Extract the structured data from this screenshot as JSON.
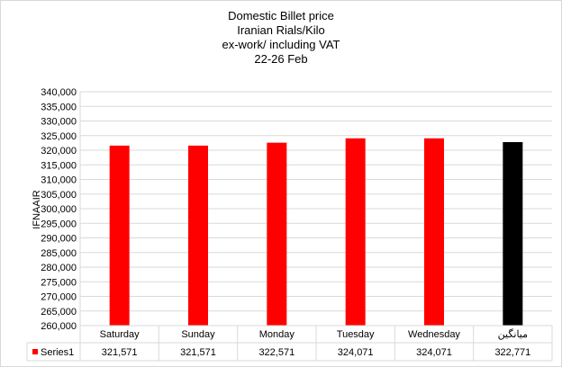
{
  "chart_data": {
    "type": "bar",
    "title_lines": [
      "Domestic Billet price",
      "Iranian  Rials/Kilo",
      "ex-work/ including VAT",
      "22-26  Feb"
    ],
    "ylabel": "IFNAAIR",
    "ylim": [
      260000,
      340000
    ],
    "ytick_step": 5000,
    "yticks": [
      "260,000",
      "265,000",
      "270,000",
      "275,000",
      "280,000",
      "285,000",
      "290,000",
      "295,000",
      "300,000",
      "305,000",
      "310,000",
      "315,000",
      "320,000",
      "325,000",
      "330,000",
      "335,000",
      "340,000"
    ],
    "categories": [
      "Saturday",
      "Sunday",
      "Monday",
      "Tuesday",
      "Wednesday",
      "میانگین"
    ],
    "series": [
      {
        "name": "Series1",
        "values": [
          321571,
          321571,
          322571,
          324071,
          324071,
          322771
        ],
        "value_labels": [
          "321,571",
          "321,571",
          "322,571",
          "324,071",
          "324,071",
          "322,771"
        ],
        "color": "#ff0000",
        "point_colors": [
          "#ff0000",
          "#ff0000",
          "#ff0000",
          "#ff0000",
          "#ff0000",
          "#000000"
        ]
      }
    ],
    "grid": true,
    "legend": "data-table"
  },
  "colors": {
    "gridline": "#d9d9d9",
    "axis": "#bfbfbf",
    "bar": "#ff0000",
    "average_bar": "#000000"
  }
}
